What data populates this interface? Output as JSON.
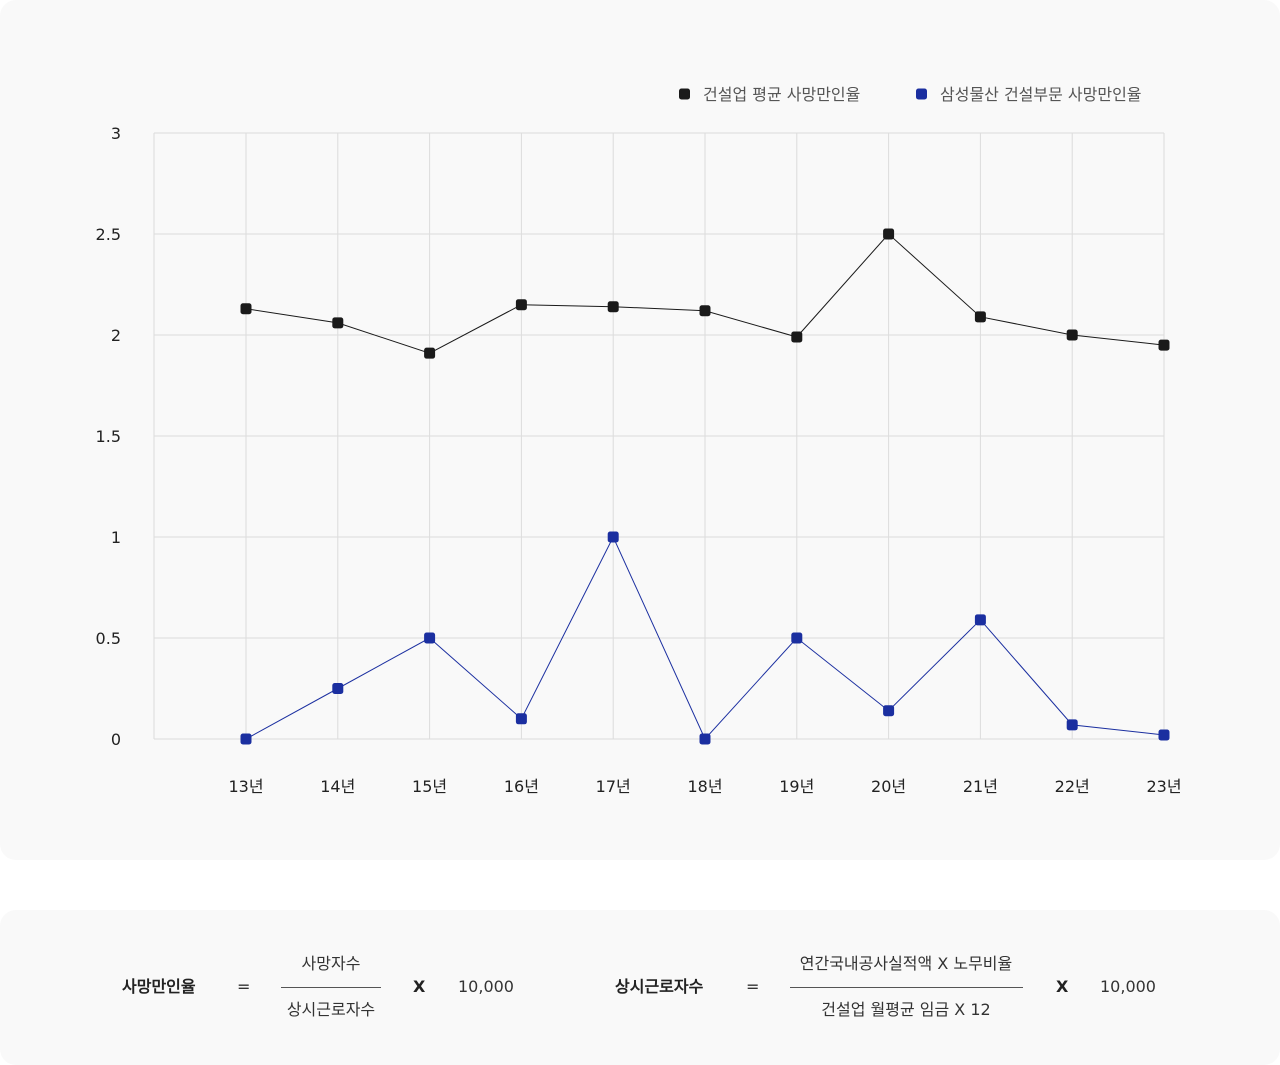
{
  "chart_data": {
    "type": "line",
    "categories": [
      "13년",
      "14년",
      "15년",
      "16년",
      "17년",
      "18년",
      "19년",
      "20년",
      "21년",
      "22년",
      "23년"
    ],
    "series": [
      {
        "name": "건설업 평균 사망만인율",
        "color": "#1a1a1a",
        "values": [
          2.13,
          2.06,
          1.91,
          2.15,
          2.14,
          2.12,
          1.99,
          2.5,
          2.09,
          2.0,
          1.95
        ]
      },
      {
        "name": "삼성물산 건설부문 사망만인율",
        "color": "#1b2fa0",
        "values": [
          0,
          0.25,
          0.5,
          0.1,
          1.0,
          0,
          0.5,
          0.14,
          0.59,
          0.07,
          0.02
        ]
      }
    ],
    "yticks": [
      "0",
      "0.5",
      "1",
      "1.5",
      "2",
      "2.5",
      "3"
    ],
    "ylim": [
      0,
      3
    ],
    "grid": true,
    "legend_position": "top-right"
  },
  "formulas": [
    {
      "label": "사망만인율",
      "equals": "=",
      "numerator": "사망자수",
      "denominator": "상시근로자수",
      "times": "X",
      "multiplier": "10,000"
    },
    {
      "label": "상시근로자수",
      "equals": "=",
      "numerator": "연간국내공사실적액 X 노무비율",
      "denominator": "건설업 월평균 임금 X 12",
      "times": "X",
      "multiplier": "10,000"
    }
  ]
}
